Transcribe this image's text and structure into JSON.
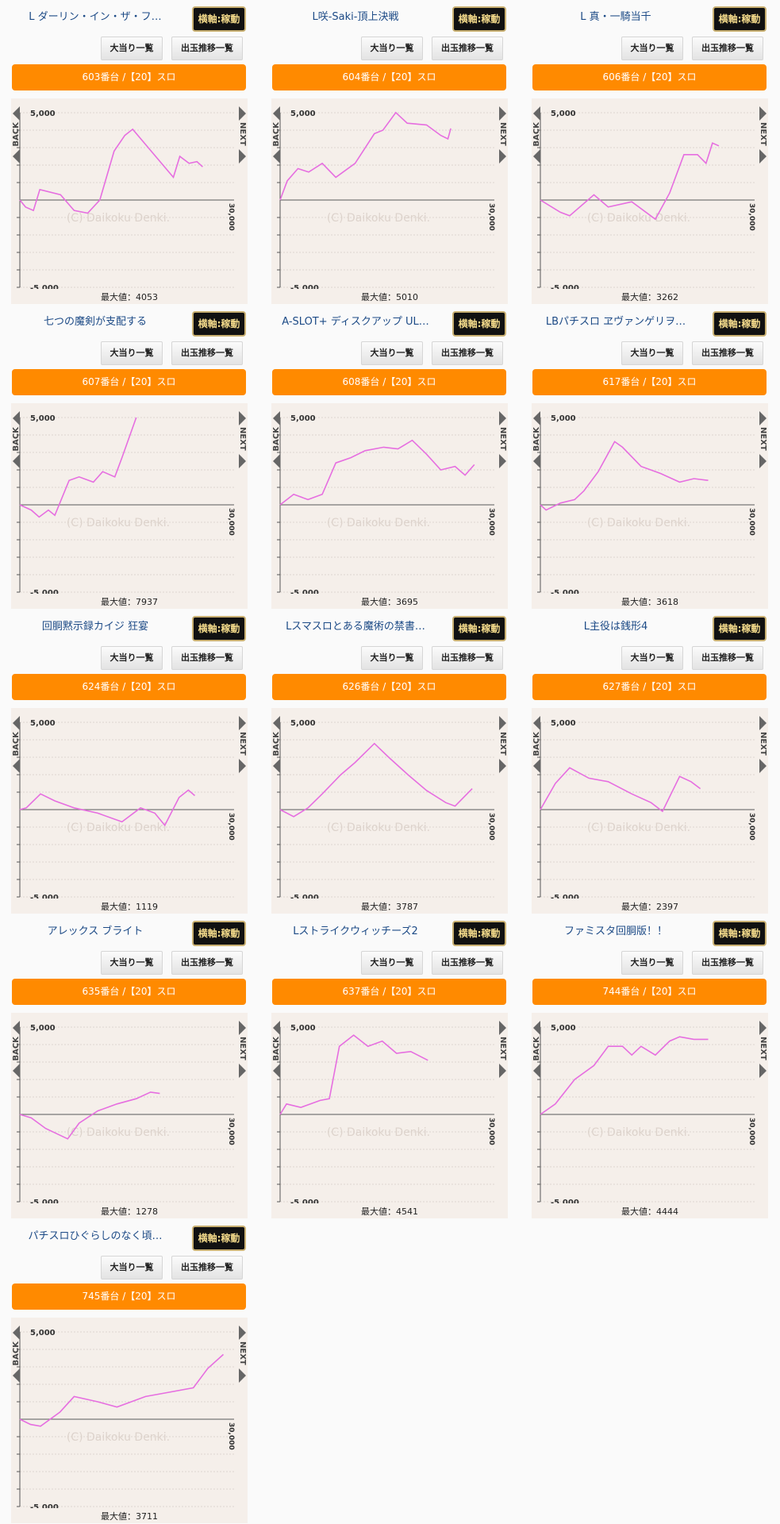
{
  "common": {
    "badge": "横軸:稼動",
    "btn_hits": "大当り一覧",
    "btn_trend": "出玉推移一覧",
    "back": "BACK",
    "next": "NEXT",
    "y_top": "5,000",
    "y_bottom": "-5,000",
    "x_max": "30,000",
    "watermark": "(C) Daikoku Denki.",
    "max_prefix": "最大値：",
    "line_color": "#e66ee0",
    "bar_color": "#ff8a00"
  },
  "cards": [
    {
      "title": "L ダーリン・イン・ザ・フ…",
      "machine": "603番台 /【20】スロ",
      "max": "4053",
      "chart_data": {
        "type": "line",
        "xlim": [
          0,
          30000
        ],
        "ylim": [
          -5000,
          5000
        ],
        "points": [
          [
            0,
            0
          ],
          [
            800,
            -400
          ],
          [
            1900,
            -600
          ],
          [
            2800,
            600
          ],
          [
            5700,
            300
          ],
          [
            7600,
            -600
          ],
          [
            9500,
            -750
          ],
          [
            11200,
            0
          ],
          [
            13200,
            2800
          ],
          [
            14700,
            3700
          ],
          [
            15800,
            4053
          ],
          [
            21500,
            1300
          ],
          [
            22400,
            2500
          ],
          [
            23700,
            2100
          ],
          [
            24800,
            2200
          ],
          [
            25600,
            1900
          ]
        ]
      }
    },
    {
      "title": "L咲-Saki-頂上決戦",
      "machine": "604番台 /【20】スロ",
      "max": "5010",
      "chart_data": {
        "type": "line",
        "xlim": [
          0,
          30000
        ],
        "ylim": [
          -5000,
          5000
        ],
        "points": [
          [
            0,
            0
          ],
          [
            1000,
            1100
          ],
          [
            2500,
            1800
          ],
          [
            4000,
            1600
          ],
          [
            5900,
            2100
          ],
          [
            7800,
            1300
          ],
          [
            10500,
            2100
          ],
          [
            13200,
            3800
          ],
          [
            14400,
            4000
          ],
          [
            16200,
            5010
          ],
          [
            17800,
            4400
          ],
          [
            20500,
            4300
          ],
          [
            22500,
            3700
          ],
          [
            23500,
            3500
          ],
          [
            23900,
            4100
          ]
        ]
      }
    },
    {
      "title": "L 真・一騎当千",
      "machine": "606番台 /【20】スロ",
      "max": "3262",
      "chart_data": {
        "type": "line",
        "xlim": [
          0,
          30000
        ],
        "ylim": [
          -5000,
          5000
        ],
        "points": [
          [
            0,
            0
          ],
          [
            2800,
            -700
          ],
          [
            4100,
            -900
          ],
          [
            7500,
            300
          ],
          [
            9500,
            -400
          ],
          [
            12800,
            -100
          ],
          [
            16100,
            -1100
          ],
          [
            18100,
            400
          ],
          [
            20100,
            2600
          ],
          [
            22000,
            2600
          ],
          [
            23200,
            2100
          ],
          [
            24100,
            3262
          ],
          [
            25000,
            3100
          ]
        ]
      }
    },
    {
      "title": "七つの魔剣が支配する",
      "machine": "607番台 /【20】スロ",
      "max": "7937",
      "chart_data": {
        "type": "line",
        "xlim": [
          0,
          30000
        ],
        "ylim": [
          -5000,
          5000
        ],
        "points": [
          [
            0,
            0
          ],
          [
            1600,
            -300
          ],
          [
            2700,
            -700
          ],
          [
            4000,
            -300
          ],
          [
            4900,
            -600
          ],
          [
            6900,
            1400
          ],
          [
            8300,
            1600
          ],
          [
            10300,
            1300
          ],
          [
            11600,
            1900
          ],
          [
            13300,
            1600
          ],
          [
            14300,
            2700
          ],
          [
            16300,
            5000
          ]
        ]
      }
    },
    {
      "title": "A-SLOT+ ディスクアップ UL…",
      "machine": "608番台 /【20】スロ",
      "max": "3695",
      "chart_data": {
        "type": "line",
        "xlim": [
          0,
          30000
        ],
        "ylim": [
          -5000,
          5000
        ],
        "points": [
          [
            0,
            0
          ],
          [
            1900,
            600
          ],
          [
            3900,
            300
          ],
          [
            5900,
            600
          ],
          [
            7800,
            2400
          ],
          [
            9900,
            2700
          ],
          [
            11900,
            3100
          ],
          [
            14500,
            3300
          ],
          [
            16500,
            3200
          ],
          [
            18500,
            3695
          ],
          [
            20500,
            2900
          ],
          [
            22500,
            2000
          ],
          [
            24500,
            2200
          ],
          [
            25900,
            1700
          ],
          [
            27200,
            2300
          ]
        ]
      }
    },
    {
      "title": "LBパチスロ ヱヴァンゲリヲ…",
      "machine": "617番台 /【20】スロ",
      "max": "3618",
      "chart_data": {
        "type": "line",
        "xlim": [
          0,
          30000
        ],
        "ylim": [
          -5000,
          5000
        ],
        "points": [
          [
            0,
            0
          ],
          [
            800,
            -300
          ],
          [
            2800,
            100
          ],
          [
            4800,
            300
          ],
          [
            6100,
            800
          ],
          [
            8100,
            1900
          ],
          [
            10400,
            3618
          ],
          [
            11500,
            3300
          ],
          [
            14100,
            2200
          ],
          [
            16800,
            1800
          ],
          [
            19500,
            1300
          ],
          [
            21500,
            1500
          ],
          [
            23500,
            1400
          ]
        ]
      }
    },
    {
      "title": "回胴黙示録カイジ 狂宴",
      "machine": "624番台 /【20】スロ",
      "max": "1119",
      "chart_data": {
        "type": "line",
        "xlim": [
          0,
          30000
        ],
        "ylim": [
          -5000,
          5000
        ],
        "points": [
          [
            0,
            0
          ],
          [
            900,
            100
          ],
          [
            2900,
            900
          ],
          [
            4900,
            500
          ],
          [
            7600,
            100
          ],
          [
            10900,
            -200
          ],
          [
            14300,
            -700
          ],
          [
            16900,
            100
          ],
          [
            18900,
            -200
          ],
          [
            20300,
            -900
          ],
          [
            22300,
            700
          ],
          [
            23600,
            1119
          ],
          [
            24500,
            800
          ]
        ]
      }
    },
    {
      "title": "Lスマスロとある魔術の禁書…",
      "machine": "626番台 /【20】スロ",
      "max": "3787",
      "chart_data": {
        "type": "line",
        "xlim": [
          0,
          30000
        ],
        "ylim": [
          -5000,
          5000
        ],
        "points": [
          [
            0,
            0
          ],
          [
            1900,
            -400
          ],
          [
            3900,
            100
          ],
          [
            5900,
            900
          ],
          [
            8500,
            2000
          ],
          [
            10500,
            2700
          ],
          [
            13200,
            3787
          ],
          [
            15200,
            3000
          ],
          [
            17900,
            2000
          ],
          [
            20500,
            1100
          ],
          [
            23200,
            400
          ],
          [
            24500,
            200
          ],
          [
            26900,
            1200
          ]
        ]
      }
    },
    {
      "title": "L主役は銭形4",
      "machine": "627番台 /【20】スロ",
      "max": "2397",
      "chart_data": {
        "type": "line",
        "xlim": [
          0,
          30000
        ],
        "ylim": [
          -5000,
          5000
        ],
        "points": [
          [
            0,
            0
          ],
          [
            2100,
            1500
          ],
          [
            4100,
            2397
          ],
          [
            6800,
            1800
          ],
          [
            9500,
            1600
          ],
          [
            12800,
            900
          ],
          [
            15500,
            400
          ],
          [
            17100,
            -100
          ],
          [
            19500,
            1900
          ],
          [
            21100,
            1600
          ],
          [
            22400,
            1200
          ]
        ]
      }
    },
    {
      "title": "アレックス ブライト",
      "machine": "635番台 /【20】スロ",
      "max": "1278",
      "chart_data": {
        "type": "line",
        "xlim": [
          0,
          30000
        ],
        "ylim": [
          -5000,
          5000
        ],
        "points": [
          [
            0,
            0
          ],
          [
            1600,
            -200
          ],
          [
            3600,
            -800
          ],
          [
            6700,
            -1400
          ],
          [
            8300,
            -500
          ],
          [
            10900,
            200
          ],
          [
            13600,
            600
          ],
          [
            16300,
            900
          ],
          [
            18300,
            1278
          ],
          [
            19600,
            1200
          ]
        ]
      }
    },
    {
      "title": "Lストライクウィッチーズ2",
      "machine": "637番台 /【20】スロ",
      "max": "4541",
      "chart_data": {
        "type": "line",
        "xlim": [
          0,
          30000
        ],
        "ylim": [
          -5000,
          5000
        ],
        "points": [
          [
            0,
            0
          ],
          [
            900,
            600
          ],
          [
            2900,
            400
          ],
          [
            5600,
            800
          ],
          [
            6900,
            900
          ],
          [
            8300,
            3900
          ],
          [
            10300,
            4541
          ],
          [
            12300,
            3900
          ],
          [
            14300,
            4200
          ],
          [
            16300,
            3500
          ],
          [
            18300,
            3600
          ],
          [
            20700,
            3100
          ]
        ]
      }
    },
    {
      "title": "ファミスタ回胴版！！",
      "machine": "744番台 /【20】スロ",
      "max": "4444",
      "chart_data": {
        "type": "line",
        "xlim": [
          0,
          30000
        ],
        "ylim": [
          -5000,
          5000
        ],
        "points": [
          [
            0,
            0
          ],
          [
            2100,
            600
          ],
          [
            4800,
            2000
          ],
          [
            7500,
            2800
          ],
          [
            9500,
            3900
          ],
          [
            11500,
            3900
          ],
          [
            12800,
            3400
          ],
          [
            14100,
            3900
          ],
          [
            16100,
            3400
          ],
          [
            18100,
            4200
          ],
          [
            19500,
            4444
          ],
          [
            21500,
            4300
          ],
          [
            23500,
            4300
          ]
        ]
      }
    },
    {
      "title": "パチスロひぐらしのなく頃…",
      "machine": "745番台 /【20】スロ",
      "max": "3711",
      "chart_data": {
        "type": "line",
        "xlim": [
          0,
          30000
        ],
        "ylim": [
          -5000,
          5000
        ],
        "points": [
          [
            0,
            0
          ],
          [
            1500,
            -300
          ],
          [
            2900,
            -400
          ],
          [
            5600,
            400
          ],
          [
            7600,
            1300
          ],
          [
            10900,
            1000
          ],
          [
            13600,
            700
          ],
          [
            17600,
            1300
          ],
          [
            20300,
            1500
          ],
          [
            24300,
            1800
          ],
          [
            26300,
            2900
          ],
          [
            28500,
            3711
          ]
        ]
      }
    }
  ]
}
